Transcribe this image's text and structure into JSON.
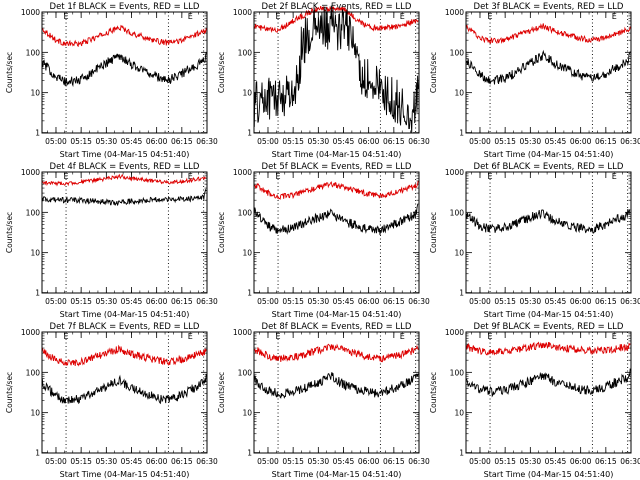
{
  "chart_data": [
    {
      "type": "line",
      "title": "Det 1f BLACK = Events, RED = LLD",
      "xlabel": "Start Time (04-Mar-15 04:51:40)",
      "ylabel": "Counts/sec",
      "yscale": "log",
      "ylim": [
        1,
        1000
      ],
      "x_ticks": [
        "05:00",
        "05:15",
        "05:30",
        "05:45",
        "06:00",
        "06:15",
        "06:30"
      ],
      "y_ticks": [
        "1",
        "10",
        "100",
        "1000"
      ],
      "markers": [
        {
          "label": "E",
          "t": "05:06"
        },
        {
          "label": "E",
          "t": "06:20"
        }
      ],
      "dotted_lines": [
        "05:06",
        "06:07",
        "06:28"
      ],
      "series": [
        {
          "name": "RED = LLD",
          "color": "#dd0000",
          "x": [
            "04:52",
            "05:00",
            "05:06",
            "05:15",
            "05:30",
            "05:38",
            "05:45",
            "06:00",
            "06:07",
            "06:15",
            "06:28",
            "06:30"
          ],
          "values": [
            380,
            200,
            160,
            165,
            300,
            420,
            300,
            190,
            170,
            200,
            330,
            380
          ],
          "noise": 0.03
        },
        {
          "name": "BLACK = Events",
          "color": "#000000",
          "x": [
            "04:52",
            "05:00",
            "05:06",
            "05:15",
            "05:30",
            "05:38",
            "05:45",
            "06:00",
            "06:07",
            "06:15",
            "06:28",
            "06:30"
          ],
          "values": [
            55,
            25,
            18,
            21,
            55,
            85,
            50,
            25,
            20,
            30,
            60,
            90
          ],
          "noise": 0.05
        }
      ]
    },
    {
      "type": "line",
      "title": "Det 2f BLACK = Events, RED = LLD",
      "xlabel": "Start Time (04-Mar-15 04:51:40)",
      "ylabel": "Counts/sec",
      "yscale": "log",
      "ylim": [
        1,
        1000
      ],
      "x_ticks": [
        "05:00",
        "05:15",
        "05:30",
        "05:45",
        "06:00",
        "06:15",
        "06:30"
      ],
      "y_ticks": [
        "1",
        "10",
        "100",
        "1000"
      ],
      "markers": [
        {
          "label": "E",
          "t": "05:06"
        },
        {
          "label": "E",
          "t": "06:20"
        }
      ],
      "dotted_lines": [
        "05:06",
        "06:07",
        "06:28"
      ],
      "series": [
        {
          "name": "RED = LLD",
          "color": "#dd0000",
          "x": [
            "04:52",
            "05:00",
            "05:06",
            "05:15",
            "05:25",
            "05:30",
            "05:45",
            "05:50",
            "06:00",
            "06:07",
            "06:15",
            "06:28",
            "06:30"
          ],
          "values": [
            450,
            360,
            360,
            600,
            1000,
            1200,
            1200,
            800,
            420,
            400,
            430,
            600,
            700
          ],
          "noise": 0.03
        },
        {
          "name": "BLACK = Events",
          "color": "#000000",
          "x": [
            "04:52",
            "05:00",
            "05:06",
            "05:15",
            "05:18",
            "05:20",
            "05:25",
            "05:30",
            "05:45",
            "05:50",
            "05:55",
            "06:00",
            "06:07",
            "06:15",
            "06:20",
            "06:25",
            "06:30"
          ],
          "values": [
            5,
            8,
            7,
            12,
            15,
            150,
            300,
            400,
            380,
            300,
            30,
            20,
            12,
            6,
            5,
            2,
            20
          ],
          "noise": 0.25
        }
      ]
    },
    {
      "type": "line",
      "title": "Det 3f BLACK = Events, RED = LLD",
      "xlabel": "Start Time (04-Mar-15 04:51:40)",
      "ylabel": "Counts/sec",
      "yscale": "log",
      "ylim": [
        1,
        1000
      ],
      "x_ticks": [
        "05:00",
        "05:15",
        "05:30",
        "05:45",
        "06:00",
        "06:15",
        "06:30"
      ],
      "y_ticks": [
        "1",
        "10",
        "100",
        "1000"
      ],
      "markers": [
        {
          "label": "E",
          "t": "05:06"
        },
        {
          "label": "E",
          "t": "06:20"
        }
      ],
      "dotted_lines": [
        "05:06",
        "06:07",
        "06:28"
      ],
      "series": [
        {
          "name": "RED = LLD",
          "color": "#dd0000",
          "x": [
            "04:52",
            "05:00",
            "05:06",
            "05:15",
            "05:30",
            "05:38",
            "05:45",
            "06:00",
            "06:07",
            "06:15",
            "06:28",
            "06:30"
          ],
          "values": [
            420,
            230,
            190,
            200,
            340,
            450,
            330,
            220,
            200,
            230,
            360,
            420
          ],
          "noise": 0.03
        },
        {
          "name": "BLACK = Events",
          "color": "#000000",
          "x": [
            "04:52",
            "05:00",
            "05:06",
            "05:15",
            "05:30",
            "05:38",
            "05:45",
            "06:00",
            "06:07",
            "06:15",
            "06:28",
            "06:30"
          ],
          "values": [
            60,
            28,
            20,
            22,
            55,
            85,
            50,
            27,
            22,
            30,
            60,
            95
          ],
          "noise": 0.05
        }
      ]
    },
    {
      "type": "line",
      "title": "Det 4f BLACK = Events, RED = LLD",
      "xlabel": "Start Time (04-Mar-15 04:51:40)",
      "ylabel": "Counts/sec",
      "yscale": "log",
      "ylim": [
        1,
        1000
      ],
      "x_ticks": [
        "05:00",
        "05:15",
        "05:30",
        "05:45",
        "06:00",
        "06:15",
        "06:30"
      ],
      "y_ticks": [
        "1",
        "10",
        "100",
        "1000"
      ],
      "markers": [
        {
          "label": "E",
          "t": "05:06"
        },
        {
          "label": "E",
          "t": "06:20"
        }
      ],
      "dotted_lines": [
        "05:06",
        "06:07",
        "06:28"
      ],
      "series": [
        {
          "name": "RED = LLD",
          "color": "#dd0000",
          "x": [
            "04:52",
            "05:00",
            "05:06",
            "05:15",
            "05:30",
            "05:38",
            "05:45",
            "06:00",
            "06:07",
            "06:15",
            "06:28",
            "06:30"
          ],
          "values": [
            550,
            520,
            520,
            560,
            680,
            780,
            700,
            580,
            560,
            580,
            700,
            800
          ],
          "noise": 0.02
        },
        {
          "name": "BLACK = Events",
          "color": "#000000",
          "x": [
            "04:52",
            "05:00",
            "05:06",
            "05:15",
            "05:30",
            "05:38",
            "05:45",
            "06:00",
            "06:07",
            "06:15",
            "06:28",
            "06:30"
          ],
          "values": [
            210,
            200,
            200,
            200,
            180,
            170,
            190,
            210,
            210,
            210,
            230,
            400
          ],
          "noise": 0.03
        }
      ]
    },
    {
      "type": "line",
      "title": "Det 5f BLACK = Events, RED = LLD",
      "xlabel": "Start Time (04-Mar-15 04:51:40)",
      "ylabel": "Counts/sec",
      "yscale": "log",
      "ylim": [
        1,
        1000
      ],
      "x_ticks": [
        "05:00",
        "05:15",
        "05:30",
        "05:45",
        "06:00",
        "06:15",
        "06:30"
      ],
      "y_ticks": [
        "1",
        "10",
        "100",
        "1000"
      ],
      "markers": [
        {
          "label": "E",
          "t": "05:06"
        },
        {
          "label": "E",
          "t": "06:20"
        }
      ],
      "dotted_lines": [
        "05:06",
        "06:07",
        "06:28"
      ],
      "series": [
        {
          "name": "RED = LLD",
          "color": "#dd0000",
          "x": [
            "04:52",
            "05:00",
            "05:06",
            "05:15",
            "05:30",
            "05:38",
            "05:45",
            "06:00",
            "06:07",
            "06:15",
            "06:28",
            "06:30"
          ],
          "values": [
            500,
            300,
            250,
            260,
            420,
            500,
            420,
            280,
            260,
            300,
            450,
            600
          ],
          "noise": 0.03
        },
        {
          "name": "BLACK = Events",
          "color": "#000000",
          "x": [
            "04:52",
            "05:00",
            "05:06",
            "05:15",
            "05:30",
            "05:38",
            "05:45",
            "06:00",
            "06:07",
            "06:15",
            "06:28",
            "06:30"
          ],
          "values": [
            110,
            45,
            35,
            40,
            75,
            95,
            60,
            38,
            35,
            50,
            90,
            150
          ],
          "noise": 0.05
        }
      ]
    },
    {
      "type": "line",
      "title": "Det 6f BLACK = Events, RED = LLD",
      "xlabel": "Start Time (04-Mar-15 04:51:40)",
      "ylabel": "Counts/sec",
      "yscale": "log",
      "ylim": [
        1,
        1000
      ],
      "x_ticks": [
        "05:00",
        "05:15",
        "05:30",
        "05:45",
        "06:00",
        "06:15",
        "06:30"
      ],
      "y_ticks": [
        "1",
        "10",
        "100",
        "1000"
      ],
      "markers": [
        {
          "label": "E",
          "t": "05:06"
        },
        {
          "label": "E",
          "t": "06:20"
        }
      ],
      "dotted_lines": [
        "05:06",
        "06:07",
        "06:28"
      ],
      "series": [
        {
          "name": "BLACK = Events",
          "color": "#000000",
          "x": [
            "04:52",
            "05:00",
            "05:06",
            "05:15",
            "05:30",
            "05:38",
            "05:45",
            "06:00",
            "06:07",
            "06:15",
            "06:28",
            "06:30"
          ],
          "values": [
            90,
            45,
            38,
            42,
            75,
            95,
            60,
            40,
            38,
            50,
            90,
            150
          ],
          "noise": 0.05
        }
      ]
    },
    {
      "type": "line",
      "title": "Det 7f BLACK = Events, RED = LLD",
      "xlabel": "Start Time (04-Mar-15 04:51:40)",
      "ylabel": "Counts/sec",
      "yscale": "log",
      "ylim": [
        1,
        1000
      ],
      "x_ticks": [
        "05:00",
        "05:15",
        "05:30",
        "05:45",
        "06:00",
        "06:15",
        "06:30"
      ],
      "y_ticks": [
        "1",
        "10",
        "100",
        "1000"
      ],
      "markers": [
        {
          "label": "E",
          "t": "05:06"
        },
        {
          "label": "E",
          "t": "06:20"
        }
      ],
      "dotted_lines": [
        "05:06",
        "06:07",
        "06:28"
      ],
      "series": [
        {
          "name": "RED = LLD",
          "color": "#dd0000",
          "x": [
            "04:52",
            "05:00",
            "05:06",
            "05:15",
            "05:30",
            "05:38",
            "05:45",
            "06:00",
            "06:07",
            "06:15",
            "06:28",
            "06:30"
          ],
          "values": [
            330,
            200,
            170,
            180,
            300,
            380,
            280,
            200,
            180,
            210,
            300,
            350
          ],
          "noise": 0.04
        },
        {
          "name": "BLACK = Events",
          "color": "#000000",
          "x": [
            "04:52",
            "05:00",
            "05:06",
            "05:15",
            "05:30",
            "05:38",
            "05:45",
            "06:00",
            "06:07",
            "06:15",
            "06:28",
            "06:30"
          ],
          "values": [
            55,
            25,
            20,
            22,
            45,
            65,
            40,
            23,
            20,
            28,
            55,
            80
          ],
          "noise": 0.05
        }
      ]
    },
    {
      "type": "line",
      "title": "Det 8f BLACK = Events, RED = LLD",
      "xlabel": "Start Time (04-Mar-15 04:51:40)",
      "ylabel": "Counts/sec",
      "yscale": "log",
      "ylim": [
        1,
        1000
      ],
      "x_ticks": [
        "05:00",
        "05:15",
        "05:30",
        "05:45",
        "06:00",
        "06:15",
        "06:30"
      ],
      "y_ticks": [
        "1",
        "10",
        "100",
        "1000"
      ],
      "markers": [
        {
          "label": "E",
          "t": "05:06"
        },
        {
          "label": "E",
          "t": "06:20"
        }
      ],
      "dotted_lines": [
        "05:06",
        "06:07",
        "06:28"
      ],
      "series": [
        {
          "name": "RED = LLD",
          "color": "#dd0000",
          "x": [
            "04:52",
            "05:00",
            "05:06",
            "05:15",
            "05:30",
            "05:38",
            "05:45",
            "06:00",
            "06:07",
            "06:15",
            "06:28",
            "06:30"
          ],
          "values": [
            380,
            250,
            220,
            230,
            350,
            450,
            350,
            240,
            220,
            250,
            350,
            420
          ],
          "noise": 0.04
        },
        {
          "name": "BLACK = Events",
          "color": "#000000",
          "x": [
            "04:52",
            "05:00",
            "05:06",
            "05:15",
            "05:30",
            "05:38",
            "05:45",
            "06:00",
            "06:07",
            "06:15",
            "06:28",
            "06:30"
          ],
          "values": [
            65,
            35,
            30,
            32,
            55,
            80,
            50,
            32,
            30,
            40,
            70,
            110
          ],
          "noise": 0.05
        }
      ]
    },
    {
      "type": "line",
      "title": "Det 9f BLACK = Events, RED = LLD",
      "xlabel": "Start Time (04-Mar-15 04:51:40)",
      "ylabel": "Counts/sec",
      "yscale": "log",
      "ylim": [
        1,
        1000
      ],
      "x_ticks": [
        "05:00",
        "05:15",
        "05:30",
        "05:45",
        "06:00",
        "06:15",
        "06:30"
      ],
      "y_ticks": [
        "1",
        "10",
        "100",
        "1000"
      ],
      "markers": [
        {
          "label": "E",
          "t": "05:06"
        },
        {
          "label": "E",
          "t": "06:20"
        }
      ],
      "dotted_lines": [
        "05:06",
        "06:07",
        "06:28"
      ],
      "series": [
        {
          "name": "RED = LLD",
          "color": "#dd0000",
          "x": [
            "04:52",
            "05:00",
            "05:06",
            "05:15",
            "05:30",
            "05:38",
            "05:45",
            "06:00",
            "06:07",
            "06:15",
            "06:28",
            "06:30"
          ],
          "values": [
            430,
            340,
            320,
            330,
            420,
            480,
            430,
            360,
            340,
            360,
            430,
            480
          ],
          "noise": 0.04
        },
        {
          "name": "BLACK = Events",
          "color": "#000000",
          "x": [
            "04:52",
            "05:00",
            "05:06",
            "05:15",
            "05:30",
            "05:38",
            "05:45",
            "06:00",
            "06:07",
            "06:15",
            "06:28",
            "06:30"
          ],
          "values": [
            60,
            38,
            33,
            36,
            60,
            85,
            55,
            38,
            35,
            45,
            75,
            110
          ],
          "noise": 0.05
        }
      ]
    }
  ]
}
